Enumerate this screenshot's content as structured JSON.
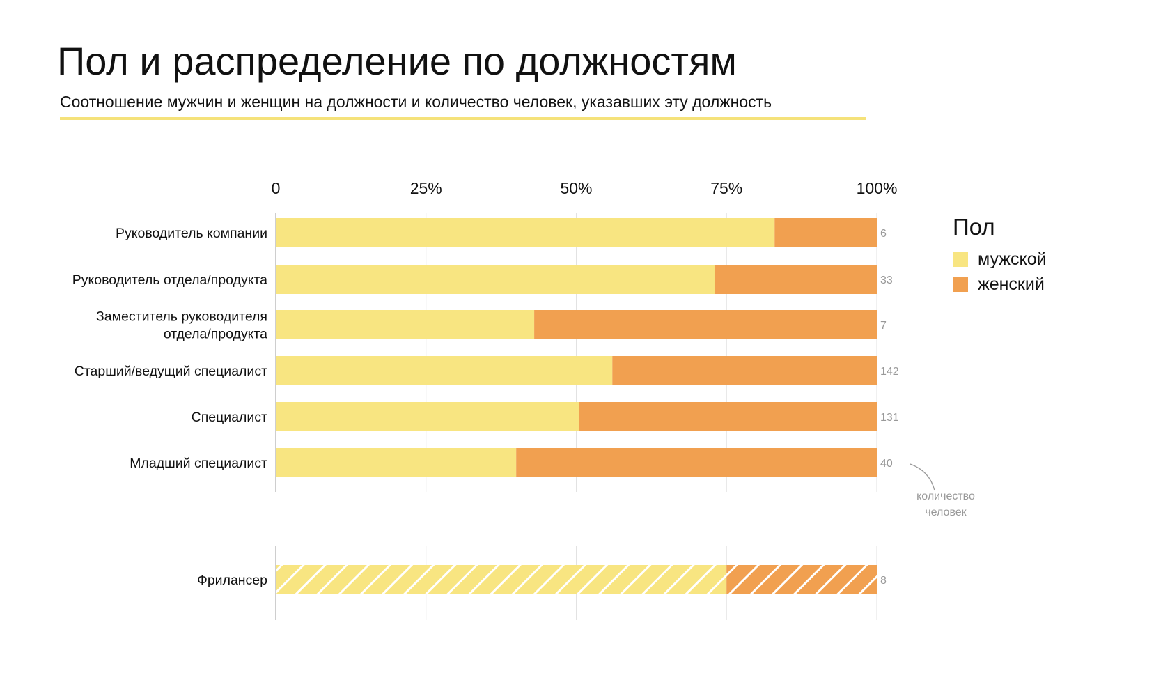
{
  "header": {
    "title": "Пол и распределение по должностям",
    "subtitle": "Соотношение мужчин и женщин на должности и количество человек, указавших эту должность"
  },
  "legend": {
    "title": "Пол",
    "items": [
      {
        "label": "мужской",
        "color": "#f8e581"
      },
      {
        "label": "женский",
        "color": "#f1a050"
      }
    ]
  },
  "annotation": {
    "line1": "количество",
    "line2": "человек"
  },
  "chart_data": {
    "type": "bar",
    "orientation": "horizontal",
    "stacked": "percent",
    "xlim": [
      0,
      100
    ],
    "tick_labels": [
      "0",
      "25%",
      "50%",
      "75%",
      "100%"
    ],
    "ticks": [
      0,
      25,
      50,
      75,
      100
    ],
    "grid": true,
    "legend_position": "right",
    "colors": {
      "male": "#f8e581",
      "female": "#f1a050"
    },
    "series": [
      {
        "name": "мужской",
        "key": "male"
      },
      {
        "name": "женский",
        "key": "female"
      }
    ],
    "groups": [
      {
        "hatched": false,
        "rows": [
          {
            "lines": [
              "Руководитель компании"
            ],
            "male": 83,
            "female": 17,
            "count": "6"
          },
          {
            "lines": [
              "Руководитель отдела/продукта"
            ],
            "male": 73,
            "female": 27,
            "count": "33"
          },
          {
            "lines": [
              "Заместитель руководителя",
              "отдела/продукта"
            ],
            "male": 43,
            "female": 57,
            "count": "7"
          },
          {
            "lines": [
              "Старший/ведущий специалист"
            ],
            "male": 56,
            "female": 44,
            "count": "142"
          },
          {
            "lines": [
              "Специалист"
            ],
            "male": 50.5,
            "female": 49.5,
            "count": "131"
          },
          {
            "lines": [
              "Младший специалист"
            ],
            "male": 40,
            "female": 60,
            "count": "40"
          }
        ]
      },
      {
        "hatched": true,
        "rows": [
          {
            "lines": [
              "Фрилансер"
            ],
            "male": 75,
            "female": 25,
            "count": "8"
          }
        ]
      }
    ]
  }
}
